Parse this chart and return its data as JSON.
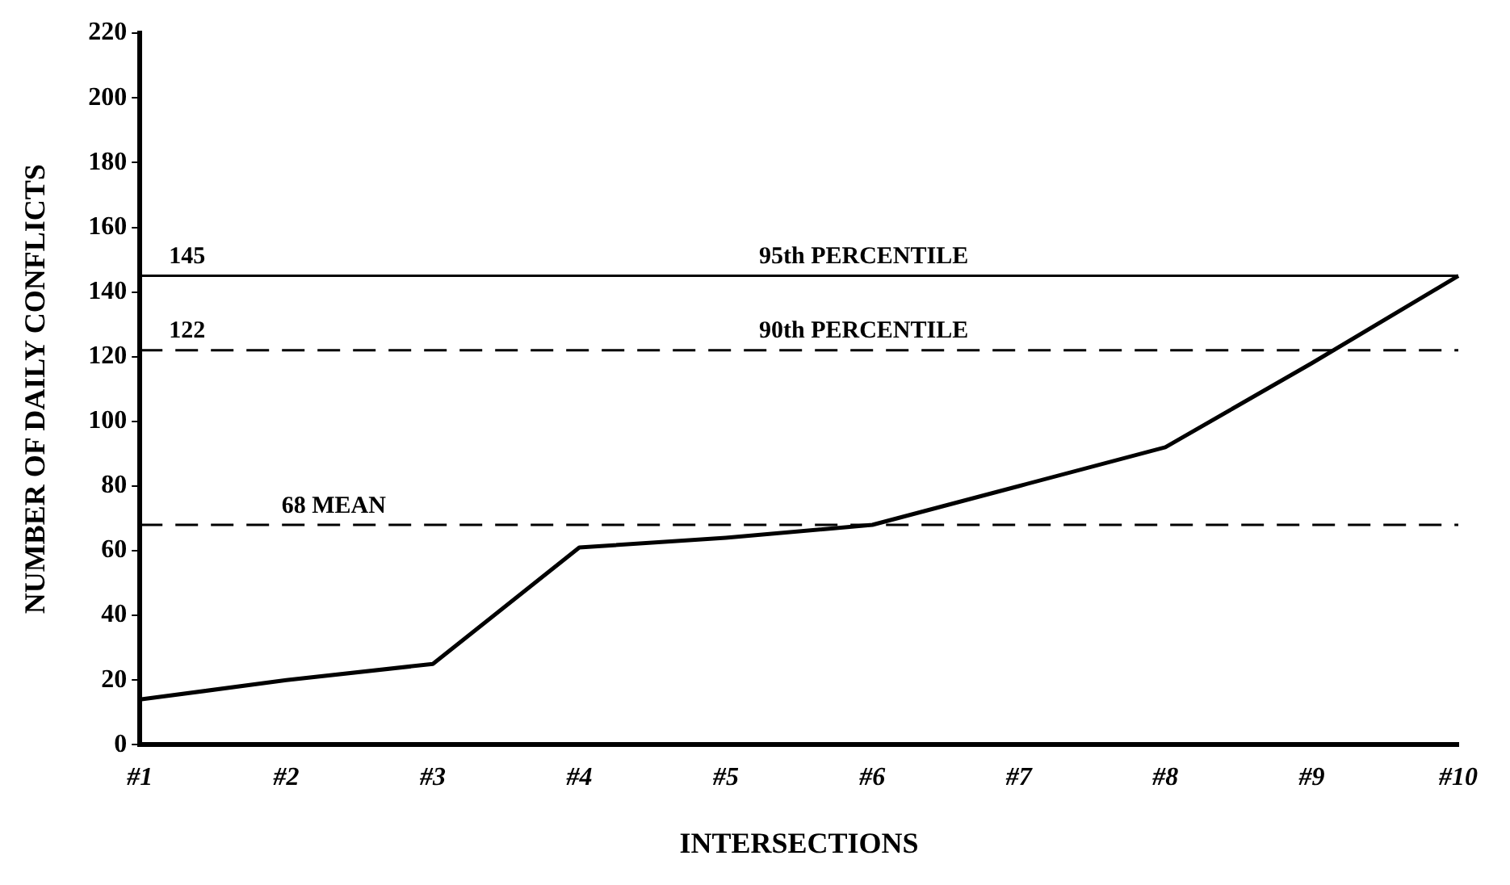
{
  "chart_data": {
    "type": "line",
    "xlabel": "INTERSECTIONS",
    "ylabel": "NUMBER OF DAILY CONFLICTS",
    "categories": [
      "#1",
      "#2",
      "#3",
      "#4",
      "#5",
      "#6",
      "#7",
      "#8",
      "#9",
      "#10"
    ],
    "series": [
      {
        "color": "#000000",
        "values": [
          14,
          20,
          25,
          61,
          64,
          68,
          80,
          92,
          118,
          145
        ]
      }
    ],
    "ylim": [
      0,
      220
    ],
    "yticks": [
      0,
      20,
      40,
      60,
      80,
      100,
      120,
      140,
      160,
      180,
      200,
      220
    ],
    "grid": false,
    "legend": false,
    "marker": "none",
    "line_style": "solid",
    "ref_lines": [
      {
        "axis": "y",
        "value": 145,
        "label": "95th PERCENTILE",
        "line_style": "solid",
        "color": "#000000"
      },
      {
        "axis": "y",
        "value": 122,
        "label": "90th PERCENTILE",
        "line_style": "dashed",
        "color": "#000000"
      },
      {
        "axis": "y",
        "value": 68,
        "label": "68 MEAN",
        "line_style": "dashed",
        "color": "#000000"
      }
    ],
    "annotations": [
      {
        "text": "145",
        "x": "#1",
        "y": 145
      },
      {
        "text": "122",
        "x": "#1",
        "y": 122
      }
    ]
  }
}
